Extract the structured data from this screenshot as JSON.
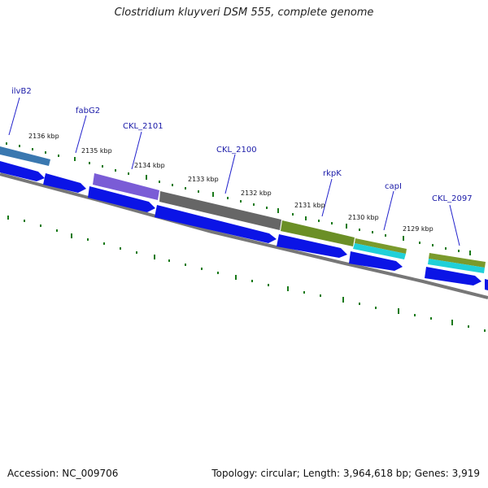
{
  "title": "Clostridium kluyveri DSM 555, complete genome",
  "footer": {
    "accession": "Accession: NC_009706",
    "summary": "Topology: circular; Length: 3,964,618 bp; Genes: 3,919"
  },
  "colors": {
    "cds": "#0b14e6",
    "backbone": "#777777",
    "tick": "#1a7a1a",
    "label_line": "#2222cc"
  },
  "kbp_ticks": [
    {
      "label": "2136 kbp"
    },
    {
      "label": "2135 kbp"
    },
    {
      "label": "2134 kbp"
    },
    {
      "label": "2133 kbp"
    },
    {
      "label": "2132 kbp"
    },
    {
      "label": "2131 kbp"
    },
    {
      "label": "2130 kbp"
    },
    {
      "label": "2129 kbp"
    }
  ],
  "gene_labels": [
    {
      "label": "ilvB2"
    },
    {
      "label": "fabG2"
    },
    {
      "label": "CKL_2101"
    },
    {
      "label": "CKL_2100"
    },
    {
      "label": "rkpK"
    },
    {
      "label": "capI"
    },
    {
      "label": "CKL_2097"
    }
  ]
}
